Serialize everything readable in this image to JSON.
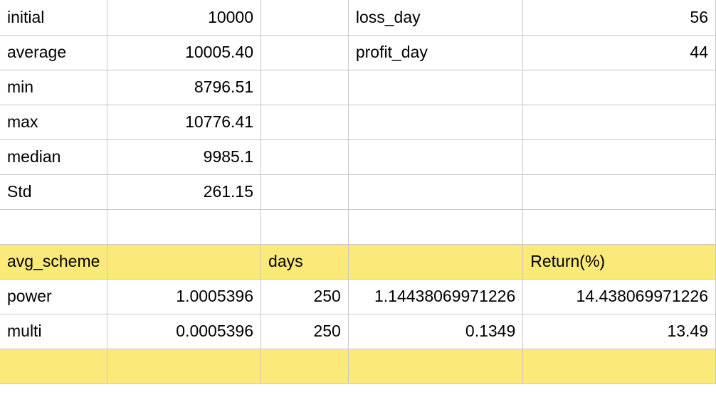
{
  "rows": [
    {
      "c0": "initial",
      "c1": "10000",
      "c2": "",
      "c3": "loss_day",
      "c4": "56"
    },
    {
      "c0": "average",
      "c1": "10005.40",
      "c2": "",
      "c3": "profit_day",
      "c4": "44"
    },
    {
      "c0": "min",
      "c1": "8796.51",
      "c2": "",
      "c3": "",
      "c4": ""
    },
    {
      "c0": "max",
      "c1": "10776.41",
      "c2": "",
      "c3": "",
      "c4": ""
    },
    {
      "c0": "median",
      "c1": "9985.1",
      "c2": "",
      "c3": "",
      "c4": ""
    },
    {
      "c0": "Std",
      "c1": "261.15",
      "c2": "",
      "c3": "",
      "c4": ""
    },
    {
      "c0": "",
      "c1": "",
      "c2": "",
      "c3": "",
      "c4": ""
    },
    {
      "c0": "avg_scheme",
      "c1": "",
      "c2": "days",
      "c3": "",
      "c4": "Return(%)"
    },
    {
      "c0": "power",
      "c1": "1.0005396",
      "c2": "250",
      "c3": "1.14438069971226",
      "c4": "14.438069971226"
    },
    {
      "c0": "multi",
      "c1": "0.0005396",
      "c2": "250",
      "c3": "0.1349",
      "c4": "13.49"
    },
    {
      "c0": "",
      "c1": "",
      "c2": "",
      "c3": "",
      "c4": ""
    }
  ],
  "highlight_color": "#fbe97a",
  "grid_color": "#c8c8c8"
}
